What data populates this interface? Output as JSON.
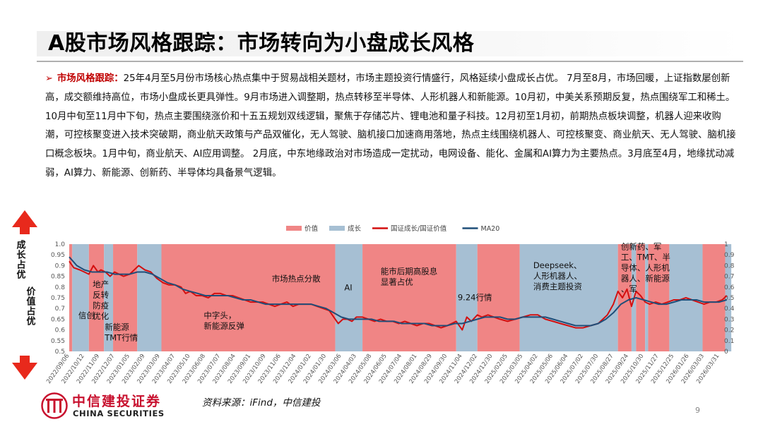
{
  "title": "A股市场风格跟踪：市场转向为小盘成长风格",
  "paragraph": {
    "arrow": "➢",
    "lead": "市场风格跟踪：",
    "text": "25年4月至5月份市场核心热点集中于贸易战相关题材，市场主题投资行情盛行，风格延续小盘成长占优。 7月至8月，市场回暖，上证指数屡创新高，成交额维持高位，市场小盘成长更具弹性。9月市场进入调整期，热点转移至半导体、人形机器人和新能源。10月初，中美关系预期反复，热点围绕军工和稀土。10月中旬至11月中下旬，热点主要围绕涨价和十五五规划双线逻辑，聚焦于存储芯片、锂电池和量子科技。12月初至1月初，前期热点板块调整，机器人迎来收购潮，可控核聚变进入技术突破期，商业航天政策与产品双催化，无人驾驶、脑机接口加速商用落地，热点主线围绕机器人、可控核聚变、商业航天、无人驾驶、脑机接口概念板块。1月中旬，商业航天、AI应用调整。 2月底，中东地缘政治对市场造成一定扰动，电网设备、能化、金属和AI算力为主要热点。3月底至4月，地缘扰动减弱，AI算力、新能源、创新药、半导体均具备景气逻辑。"
  },
  "side_labels": {
    "top": "成长占优",
    "bottom": "价值占优"
  },
  "chart_data": {
    "type": "line",
    "legend": [
      {
        "name": "价值",
        "kind": "area",
        "color": "#f08585"
      },
      {
        "name": "成长",
        "kind": "area",
        "color": "#a6bfd3"
      },
      {
        "name": "国证成长/国证价值",
        "kind": "line",
        "color": "#d40f0f"
      },
      {
        "name": "MA20",
        "kind": "line",
        "color": "#1f4e79"
      }
    ],
    "y_left": {
      "min": 0.5,
      "max": 1.0,
      "ticks": [
        "0.5",
        "0.55",
        "0.6",
        "0.65",
        "0.7",
        "0.75",
        "0.8",
        "0.85",
        "0.9",
        "0.95",
        "1.0"
      ]
    },
    "y_right": {
      "min": 0,
      "max": 1,
      "ticks": [
        "0",
        "0.1",
        "0.2",
        "0.3",
        "0.4",
        "0.5",
        "0.6",
        "0.7",
        "0.8",
        "0.9",
        "1"
      ]
    },
    "x_ticks": [
      "2022/09/06",
      "2022/10/12",
      "2022/11/09",
      "2022/12/07",
      "2023/01/05",
      "2023/02/09",
      "2023/03/09",
      "2023/04/07",
      "2023/05/10",
      "2023/06/08",
      "2023/07/07",
      "2023/08/04",
      "2023/09/01",
      "2023/10/09",
      "2023/11/06",
      "2023/12/04",
      "2024/01/02",
      "2024/01/30",
      "2024/03/06",
      "2024/04/03",
      "2024/05/08",
      "2024/06/05",
      "2024/07/04",
      "2024/08/01",
      "2024/08/29",
      "2024/09/30",
      "2024/11/04",
      "2024/12/02",
      "2024/12/30",
      "2025/02/05",
      "2025/03/05",
      "2025/04/02",
      "2025/05/06",
      "2025/06/04",
      "2025/07/02",
      "2025/07/30",
      "2025/08/27",
      "2025/09/24",
      "2025/10/30",
      "2025/11/27",
      "2025/12/25",
      "2026/01/26",
      "2026/03/03",
      "2026/03/31"
    ],
    "regimes": [
      {
        "start": 0,
        "end": 0.2,
        "style": "价值"
      },
      {
        "start": 0.2,
        "end": 1.3,
        "style": "成长"
      },
      {
        "start": 1.3,
        "end": 2.3,
        "style": "价值"
      },
      {
        "start": 2.3,
        "end": 2.9,
        "style": "成长"
      },
      {
        "start": 2.9,
        "end": 4.5,
        "style": "价值"
      },
      {
        "start": 4.5,
        "end": 6.1,
        "style": "成长"
      },
      {
        "start": 6.1,
        "end": 17.6,
        "style": "价值"
      },
      {
        "start": 17.6,
        "end": 19.4,
        "style": "成长"
      },
      {
        "start": 19.4,
        "end": 25.6,
        "style": "价值"
      },
      {
        "start": 25.6,
        "end": 27.0,
        "style": "成长"
      },
      {
        "start": 27.0,
        "end": 29.8,
        "style": "价值"
      },
      {
        "start": 29.8,
        "end": 36.3,
        "style": "成长"
      },
      {
        "start": 36.3,
        "end": 37.2,
        "style": "价值"
      },
      {
        "start": 37.2,
        "end": 37.5,
        "style": "成长"
      },
      {
        "start": 37.5,
        "end": 38.1,
        "style": "价值"
      },
      {
        "start": 38.1,
        "end": 38.3,
        "style": "成长"
      },
      {
        "start": 38.3,
        "end": 39.7,
        "style": "价值"
      },
      {
        "start": 39.7,
        "end": 41.9,
        "style": "成长"
      },
      {
        "start": 41.9,
        "end": 43.4,
        "style": "价值"
      },
      {
        "start": 43.4,
        "end": 43.8,
        "style": "成长"
      }
    ],
    "ratio_series": [
      [
        0,
        0.92
      ],
      [
        0.3,
        0.89
      ],
      [
        0.7,
        0.88
      ],
      [
        1,
        0.87
      ],
      [
        1.3,
        0.86
      ],
      [
        1.6,
        0.9
      ],
      [
        1.9,
        0.87
      ],
      [
        2.1,
        0.88
      ],
      [
        2.4,
        0.87
      ],
      [
        2.7,
        0.85
      ],
      [
        3,
        0.87
      ],
      [
        3.3,
        0.86
      ],
      [
        3.6,
        0.85
      ],
      [
        4,
        0.86
      ],
      [
        4.3,
        0.88
      ],
      [
        4.6,
        0.9
      ],
      [
        5,
        0.88
      ],
      [
        5.4,
        0.87
      ],
      [
        5.8,
        0.84
      ],
      [
        6.2,
        0.82
      ],
      [
        6.6,
        0.81
      ],
      [
        7,
        0.81
      ],
      [
        7.4,
        0.8
      ],
      [
        7.7,
        0.77
      ],
      [
        8,
        0.78
      ],
      [
        8.4,
        0.76
      ],
      [
        8.8,
        0.76
      ],
      [
        9.2,
        0.75
      ],
      [
        9.6,
        0.77
      ],
      [
        10,
        0.77
      ],
      [
        10.4,
        0.76
      ],
      [
        10.8,
        0.76
      ],
      [
        11.2,
        0.75
      ],
      [
        11.6,
        0.74
      ],
      [
        12,
        0.73
      ],
      [
        12.4,
        0.73
      ],
      [
        12.8,
        0.73
      ],
      [
        13.2,
        0.72
      ],
      [
        13.6,
        0.71
      ],
      [
        14,
        0.72
      ],
      [
        14.4,
        0.73
      ],
      [
        14.8,
        0.71
      ],
      [
        15.2,
        0.72
      ],
      [
        15.6,
        0.72
      ],
      [
        16,
        0.72
      ],
      [
        16.4,
        0.71
      ],
      [
        16.8,
        0.7
      ],
      [
        17.2,
        0.69
      ],
      [
        17.5,
        0.66
      ],
      [
        17.8,
        0.63
      ],
      [
        18.1,
        0.65
      ],
      [
        18.4,
        0.65
      ],
      [
        18.7,
        0.64
      ],
      [
        19,
        0.66
      ],
      [
        19.4,
        0.66
      ],
      [
        19.8,
        0.65
      ],
      [
        20.2,
        0.64
      ],
      [
        20.6,
        0.65
      ],
      [
        21,
        0.64
      ],
      [
        21.4,
        0.64
      ],
      [
        21.8,
        0.63
      ],
      [
        22.2,
        0.64
      ],
      [
        22.6,
        0.63
      ],
      [
        23,
        0.62
      ],
      [
        23.4,
        0.63
      ],
      [
        23.8,
        0.63
      ],
      [
        24.2,
        0.62
      ],
      [
        24.6,
        0.61
      ],
      [
        25,
        0.62
      ],
      [
        25.3,
        0.63
      ],
      [
        25.6,
        0.64
      ],
      [
        26,
        0.6
      ],
      [
        26.3,
        0.66
      ],
      [
        26.6,
        0.64
      ],
      [
        27,
        0.67
      ],
      [
        27.3,
        0.66
      ],
      [
        27.7,
        0.67
      ],
      [
        28.1,
        0.66
      ],
      [
        28.5,
        0.65
      ],
      [
        29,
        0.64
      ],
      [
        29.5,
        0.65
      ],
      [
        30,
        0.66
      ],
      [
        30.5,
        0.67
      ],
      [
        31,
        0.67
      ],
      [
        31.5,
        0.65
      ],
      [
        32,
        0.64
      ],
      [
        32.5,
        0.63
      ],
      [
        33,
        0.62
      ],
      [
        33.5,
        0.61
      ],
      [
        34,
        0.61
      ],
      [
        34.5,
        0.62
      ],
      [
        35,
        0.63
      ],
      [
        35.3,
        0.65
      ],
      [
        35.6,
        0.67
      ],
      [
        36,
        0.72
      ],
      [
        36.3,
        0.78
      ],
      [
        36.6,
        0.75
      ],
      [
        36.9,
        0.79
      ],
      [
        37.2,
        0.71
      ],
      [
        37.5,
        0.78
      ],
      [
        37.8,
        0.76
      ],
      [
        38.1,
        0.73
      ],
      [
        38.4,
        0.72
      ],
      [
        38.8,
        0.73
      ],
      [
        39.2,
        0.72
      ],
      [
        39.6,
        0.73
      ],
      [
        40,
        0.74
      ],
      [
        40.4,
        0.74
      ],
      [
        40.8,
        0.75
      ],
      [
        41.2,
        0.74
      ],
      [
        41.6,
        0.73
      ],
      [
        42,
        0.72
      ],
      [
        42.4,
        0.73
      ],
      [
        42.8,
        0.73
      ],
      [
        43.2,
        0.74
      ],
      [
        43.5,
        0.76
      ]
    ],
    "ma20_series": [
      [
        0,
        0.94
      ],
      [
        0.5,
        0.9
      ],
      [
        1,
        0.88
      ],
      [
        1.5,
        0.87
      ],
      [
        2,
        0.87
      ],
      [
        2.5,
        0.87
      ],
      [
        3,
        0.86
      ],
      [
        3.5,
        0.86
      ],
      [
        4,
        0.86
      ],
      [
        4.5,
        0.87
      ],
      [
        5,
        0.87
      ],
      [
        5.5,
        0.86
      ],
      [
        6,
        0.84
      ],
      [
        6.5,
        0.82
      ],
      [
        7,
        0.81
      ],
      [
        7.5,
        0.79
      ],
      [
        8,
        0.78
      ],
      [
        8.5,
        0.77
      ],
      [
        9,
        0.76
      ],
      [
        9.5,
        0.76
      ],
      [
        10,
        0.76
      ],
      [
        10.5,
        0.76
      ],
      [
        11,
        0.75
      ],
      [
        11.5,
        0.74
      ],
      [
        12,
        0.74
      ],
      [
        12.5,
        0.73
      ],
      [
        13,
        0.72
      ],
      [
        13.5,
        0.72
      ],
      [
        14,
        0.72
      ],
      [
        14.5,
        0.72
      ],
      [
        15,
        0.72
      ],
      [
        15.5,
        0.72
      ],
      [
        16,
        0.72
      ],
      [
        16.5,
        0.71
      ],
      [
        17,
        0.7
      ],
      [
        17.5,
        0.68
      ],
      [
        18,
        0.66
      ],
      [
        18.5,
        0.65
      ],
      [
        19,
        0.65
      ],
      [
        19.5,
        0.65
      ],
      [
        20,
        0.65
      ],
      [
        20.5,
        0.64
      ],
      [
        21,
        0.64
      ],
      [
        21.5,
        0.64
      ],
      [
        22,
        0.63
      ],
      [
        22.5,
        0.63
      ],
      [
        23,
        0.63
      ],
      [
        23.5,
        0.63
      ],
      [
        24,
        0.62
      ],
      [
        24.5,
        0.62
      ],
      [
        25,
        0.62
      ],
      [
        25.5,
        0.63
      ],
      [
        26,
        0.63
      ],
      [
        26.5,
        0.64
      ],
      [
        27,
        0.65
      ],
      [
        27.5,
        0.66
      ],
      [
        28,
        0.66
      ],
      [
        28.5,
        0.66
      ],
      [
        29,
        0.65
      ],
      [
        29.5,
        0.65
      ],
      [
        30,
        0.66
      ],
      [
        30.5,
        0.66
      ],
      [
        31,
        0.66
      ],
      [
        31.5,
        0.66
      ],
      [
        32,
        0.65
      ],
      [
        32.5,
        0.64
      ],
      [
        33,
        0.63
      ],
      [
        33.5,
        0.62
      ],
      [
        34,
        0.62
      ],
      [
        34.5,
        0.62
      ],
      [
        35,
        0.63
      ],
      [
        35.5,
        0.65
      ],
      [
        36,
        0.68
      ],
      [
        36.5,
        0.72
      ],
      [
        37,
        0.74
      ],
      [
        37.5,
        0.75
      ],
      [
        38,
        0.74
      ],
      [
        38.5,
        0.73
      ],
      [
        39,
        0.72
      ],
      [
        39.5,
        0.72
      ],
      [
        40,
        0.73
      ],
      [
        40.5,
        0.74
      ],
      [
        41,
        0.74
      ],
      [
        41.5,
        0.74
      ],
      [
        42,
        0.73
      ],
      [
        42.5,
        0.73
      ],
      [
        43,
        0.73
      ],
      [
        43.5,
        0.74
      ]
    ],
    "annotations": [
      {
        "lines": [
          "信创"
        ],
        "x": 0.6,
        "y": 0.655,
        "anchor": "start"
      },
      {
        "lines": [
          "地产",
          "反转",
          "防疫",
          "优化"
        ],
        "x": 1.55,
        "y": 0.8,
        "anchor": "start"
      },
      {
        "lines": [
          "新能源",
          "TMT行情"
        ],
        "x": 2.35,
        "y": 0.6,
        "anchor": "start"
      },
      {
        "lines": [
          "中字头，",
          "新能源反弹"
        ],
        "x": 8.9,
        "y": 0.655,
        "anchor": "start"
      },
      {
        "lines": [
          "市场热点分散"
        ],
        "x": 13.4,
        "y": 0.825,
        "anchor": "start"
      },
      {
        "lines": [
          "AI"
        ],
        "x": 18.2,
        "y": 0.785,
        "anchor": "start"
      },
      {
        "lines": [
          "能市后期高股息",
          "显著占优"
        ],
        "x": 20.6,
        "y": 0.86,
        "anchor": "start"
      },
      {
        "lines": [
          "9.24行情"
        ],
        "x": 25.7,
        "y": 0.738,
        "anchor": "start"
      },
      {
        "lines": [
          "Deepseek、",
          "人形机器人、",
          "消费主题投资"
        ],
        "x": 30.7,
        "y": 0.888,
        "anchor": "start"
      },
      {
        "lines": [
          "创新药、军",
          "工、TMT、半",
          "导体、人形机",
          "器人、新能源",
          "、军"
        ],
        "x": 36.5,
        "y": 0.975,
        "anchor": "start"
      }
    ]
  },
  "source": "资料来源：iFind，中信建投",
  "logo": {
    "cn": "中信建投证券",
    "en": "CHINA SECURITIES"
  },
  "page_number": "9"
}
